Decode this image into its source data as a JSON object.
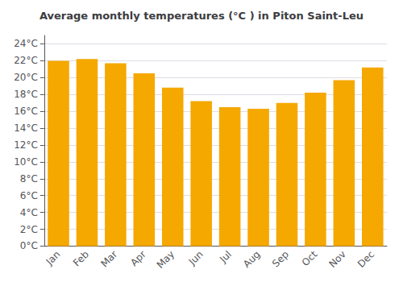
{
  "chart_data": {
    "type": "bar",
    "title": "Average monthly temperatures (°C ) in Piton Saint-Leu",
    "categories": [
      "Jan",
      "Feb",
      "Mar",
      "Apr",
      "May",
      "Jun",
      "Jul",
      "Aug",
      "Sep",
      "Oct",
      "Nov",
      "Dec"
    ],
    "values": [
      22.0,
      22.2,
      21.7,
      20.5,
      18.8,
      17.2,
      16.5,
      16.3,
      17.0,
      18.2,
      19.7,
      21.2
    ],
    "color": "#F5A800",
    "ylim": [
      0,
      25
    ],
    "yticks": [
      {
        "value": 0,
        "label": "0°C"
      },
      {
        "value": 2,
        "label": "2°C"
      },
      {
        "value": 4,
        "label": "4°C"
      },
      {
        "value": 6,
        "label": "6°C"
      },
      {
        "value": 8,
        "label": "8°C"
      },
      {
        "value": 10,
        "label": "10°C"
      },
      {
        "value": 12,
        "label": "12°C"
      },
      {
        "value": 14,
        "label": "14°C"
      },
      {
        "value": 16,
        "label": "16°C"
      },
      {
        "value": 18,
        "label": "18°C"
      },
      {
        "value": 20,
        "label": "20°C"
      },
      {
        "value": 22,
        "label": "22°C"
      },
      {
        "value": 24,
        "label": "24°C"
      }
    ],
    "grid": true
  }
}
